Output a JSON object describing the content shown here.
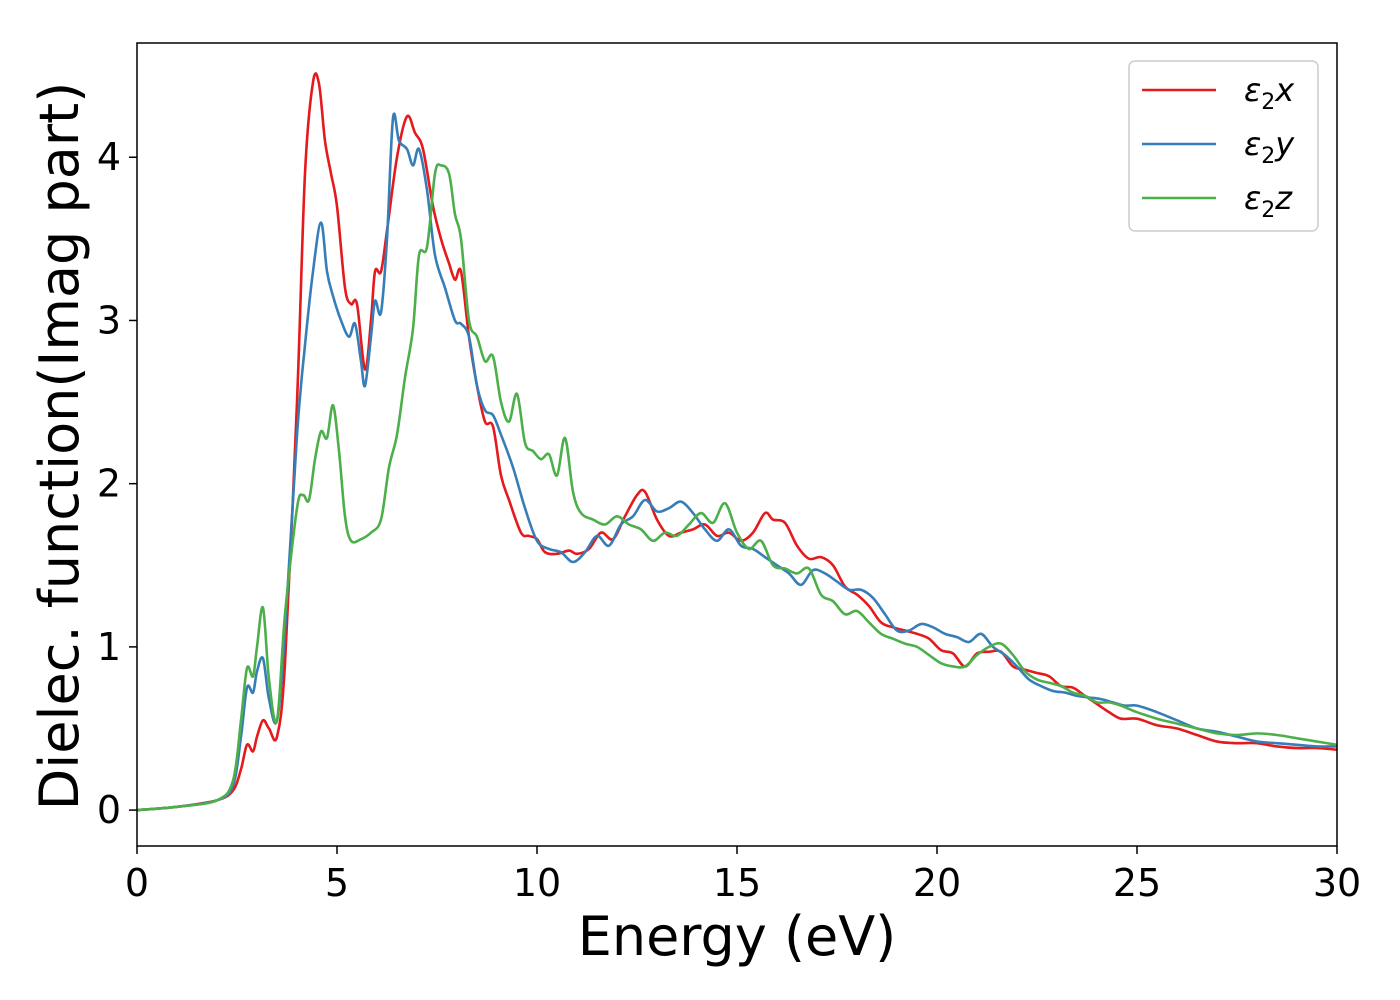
{
  "chart_data": {
    "type": "line",
    "title": "",
    "xlabel": "Energy (eV)",
    "ylabel": "Dielec. function(Imag part)",
    "xlim": [
      0,
      30
    ],
    "ylim": [
      -0.22,
      4.7
    ],
    "xticks": [
      0,
      5,
      10,
      15,
      20,
      25,
      30
    ],
    "yticks": [
      0,
      1,
      2,
      3,
      4
    ],
    "grid": false,
    "legend_position": "top-right",
    "series": [
      {
        "name": "ε₂x",
        "legend_main": "ε",
        "legend_sub": "2",
        "legend_tail": "x",
        "color": "#e41a1c",
        "points": [
          [
            0,
            0
          ],
          [
            1,
            0.02
          ],
          [
            2,
            0.06
          ],
          [
            2.4,
            0.12
          ],
          [
            2.6,
            0.25
          ],
          [
            2.75,
            0.4
          ],
          [
            2.9,
            0.36
          ],
          [
            3.0,
            0.45
          ],
          [
            3.15,
            0.55
          ],
          [
            3.3,
            0.5
          ],
          [
            3.5,
            0.45
          ],
          [
            3.7,
            0.9
          ],
          [
            4.0,
            2.5
          ],
          [
            4.2,
            3.9
          ],
          [
            4.4,
            4.46
          ],
          [
            4.55,
            4.45
          ],
          [
            4.7,
            4.1
          ],
          [
            4.85,
            3.9
          ],
          [
            5.0,
            3.7
          ],
          [
            5.2,
            3.2
          ],
          [
            5.35,
            3.1
          ],
          [
            5.5,
            3.1
          ],
          [
            5.7,
            2.7
          ],
          [
            5.85,
            3.0
          ],
          [
            5.95,
            3.3
          ],
          [
            6.1,
            3.3
          ],
          [
            6.25,
            3.55
          ],
          [
            6.5,
            4.0
          ],
          [
            6.75,
            4.25
          ],
          [
            6.95,
            4.15
          ],
          [
            7.15,
            4.05
          ],
          [
            7.4,
            3.7
          ],
          [
            7.6,
            3.5
          ],
          [
            7.8,
            3.35
          ],
          [
            7.95,
            3.25
          ],
          [
            8.1,
            3.3
          ],
          [
            8.3,
            2.9
          ],
          [
            8.5,
            2.6
          ],
          [
            8.7,
            2.38
          ],
          [
            8.9,
            2.35
          ],
          [
            9.1,
            2.05
          ],
          [
            9.3,
            1.9
          ],
          [
            9.6,
            1.7
          ],
          [
            9.8,
            1.68
          ],
          [
            10.0,
            1.66
          ],
          [
            10.2,
            1.58
          ],
          [
            10.5,
            1.57
          ],
          [
            10.8,
            1.59
          ],
          [
            11.0,
            1.57
          ],
          [
            11.3,
            1.6
          ],
          [
            11.6,
            1.7
          ],
          [
            11.9,
            1.66
          ],
          [
            12.2,
            1.8
          ],
          [
            12.5,
            1.93
          ],
          [
            12.7,
            1.95
          ],
          [
            13.0,
            1.78
          ],
          [
            13.3,
            1.68
          ],
          [
            13.6,
            1.7
          ],
          [
            13.9,
            1.72
          ],
          [
            14.2,
            1.75
          ],
          [
            14.5,
            1.68
          ],
          [
            14.8,
            1.7
          ],
          [
            15.1,
            1.65
          ],
          [
            15.4,
            1.7
          ],
          [
            15.7,
            1.82
          ],
          [
            15.9,
            1.78
          ],
          [
            16.2,
            1.76
          ],
          [
            16.5,
            1.62
          ],
          [
            16.8,
            1.54
          ],
          [
            17.1,
            1.55
          ],
          [
            17.4,
            1.5
          ],
          [
            17.7,
            1.37
          ],
          [
            18.0,
            1.32
          ],
          [
            18.3,
            1.25
          ],
          [
            18.6,
            1.15
          ],
          [
            18.9,
            1.12
          ],
          [
            19.2,
            1.1
          ],
          [
            19.5,
            1.08
          ],
          [
            19.8,
            1.05
          ],
          [
            20.1,
            0.98
          ],
          [
            20.4,
            0.96
          ],
          [
            20.7,
            0.88
          ],
          [
            21.0,
            0.96
          ],
          [
            21.3,
            0.97
          ],
          [
            21.6,
            0.97
          ],
          [
            21.9,
            0.88
          ],
          [
            22.2,
            0.86
          ],
          [
            22.5,
            0.84
          ],
          [
            22.8,
            0.82
          ],
          [
            23.1,
            0.76
          ],
          [
            23.4,
            0.75
          ],
          [
            23.7,
            0.7
          ],
          [
            24.0,
            0.65
          ],
          [
            24.3,
            0.6
          ],
          [
            24.6,
            0.56
          ],
          [
            25.0,
            0.56
          ],
          [
            25.5,
            0.52
          ],
          [
            26.0,
            0.5
          ],
          [
            26.5,
            0.46
          ],
          [
            27.0,
            0.42
          ],
          [
            27.5,
            0.41
          ],
          [
            28.0,
            0.41
          ],
          [
            28.5,
            0.39
          ],
          [
            29.0,
            0.38
          ],
          [
            29.5,
            0.38
          ],
          [
            30,
            0.37
          ]
        ]
      },
      {
        "name": "ε₂y",
        "legend_main": "ε",
        "legend_sub": "2",
        "legend_tail": "y",
        "color": "#377eb8",
        "points": [
          [
            0,
            0
          ],
          [
            1,
            0.02
          ],
          [
            2,
            0.06
          ],
          [
            2.4,
            0.15
          ],
          [
            2.6,
            0.45
          ],
          [
            2.75,
            0.75
          ],
          [
            2.9,
            0.72
          ],
          [
            3.0,
            0.85
          ],
          [
            3.15,
            0.93
          ],
          [
            3.3,
            0.68
          ],
          [
            3.5,
            0.55
          ],
          [
            3.7,
            1.1
          ],
          [
            4.0,
            2.3
          ],
          [
            4.2,
            2.85
          ],
          [
            4.4,
            3.3
          ],
          [
            4.6,
            3.6
          ],
          [
            4.75,
            3.3
          ],
          [
            4.9,
            3.15
          ],
          [
            5.1,
            3.0
          ],
          [
            5.3,
            2.9
          ],
          [
            5.45,
            2.98
          ],
          [
            5.6,
            2.75
          ],
          [
            5.7,
            2.6
          ],
          [
            5.85,
            2.9
          ],
          [
            5.95,
            3.12
          ],
          [
            6.1,
            3.05
          ],
          [
            6.25,
            3.5
          ],
          [
            6.4,
            4.24
          ],
          [
            6.55,
            4.1
          ],
          [
            6.75,
            4.05
          ],
          [
            6.9,
            3.95
          ],
          [
            7.05,
            4.05
          ],
          [
            7.25,
            3.8
          ],
          [
            7.45,
            3.4
          ],
          [
            7.7,
            3.2
          ],
          [
            7.95,
            3.0
          ],
          [
            8.1,
            2.98
          ],
          [
            8.3,
            2.9
          ],
          [
            8.5,
            2.6
          ],
          [
            8.7,
            2.45
          ],
          [
            8.9,
            2.42
          ],
          [
            9.1,
            2.3
          ],
          [
            9.4,
            2.1
          ],
          [
            9.7,
            1.85
          ],
          [
            10.0,
            1.65
          ],
          [
            10.3,
            1.6
          ],
          [
            10.6,
            1.58
          ],
          [
            10.9,
            1.52
          ],
          [
            11.2,
            1.58
          ],
          [
            11.5,
            1.68
          ],
          [
            11.8,
            1.62
          ],
          [
            12.1,
            1.75
          ],
          [
            12.4,
            1.8
          ],
          [
            12.7,
            1.9
          ],
          [
            13.0,
            1.83
          ],
          [
            13.3,
            1.85
          ],
          [
            13.6,
            1.89
          ],
          [
            13.9,
            1.82
          ],
          [
            14.2,
            1.72
          ],
          [
            14.5,
            1.65
          ],
          [
            14.8,
            1.72
          ],
          [
            15.1,
            1.62
          ],
          [
            15.4,
            1.6
          ],
          [
            15.7,
            1.55
          ],
          [
            16.0,
            1.5
          ],
          [
            16.3,
            1.45
          ],
          [
            16.6,
            1.38
          ],
          [
            16.9,
            1.47
          ],
          [
            17.2,
            1.45
          ],
          [
            17.5,
            1.4
          ],
          [
            17.8,
            1.35
          ],
          [
            18.1,
            1.35
          ],
          [
            18.4,
            1.3
          ],
          [
            18.7,
            1.2
          ],
          [
            19.0,
            1.1
          ],
          [
            19.3,
            1.1
          ],
          [
            19.6,
            1.14
          ],
          [
            19.9,
            1.12
          ],
          [
            20.2,
            1.08
          ],
          [
            20.5,
            1.06
          ],
          [
            20.8,
            1.03
          ],
          [
            21.1,
            1.08
          ],
          [
            21.4,
            1.0
          ],
          [
            21.7,
            0.95
          ],
          [
            22.0,
            0.88
          ],
          [
            22.3,
            0.8
          ],
          [
            22.6,
            0.76
          ],
          [
            22.9,
            0.73
          ],
          [
            23.2,
            0.72
          ],
          [
            23.5,
            0.7
          ],
          [
            23.8,
            0.69
          ],
          [
            24.1,
            0.68
          ],
          [
            24.4,
            0.66
          ],
          [
            24.7,
            0.64
          ],
          [
            25.0,
            0.64
          ],
          [
            25.5,
            0.6
          ],
          [
            26.0,
            0.55
          ],
          [
            26.5,
            0.5
          ],
          [
            27.0,
            0.48
          ],
          [
            27.5,
            0.45
          ],
          [
            28.0,
            0.42
          ],
          [
            28.5,
            0.41
          ],
          [
            29.0,
            0.4
          ],
          [
            29.5,
            0.39
          ],
          [
            30,
            0.39
          ]
        ]
      },
      {
        "name": "ε₂z",
        "legend_main": "ε",
        "legend_sub": "2",
        "legend_tail": "z",
        "color": "#4daf4a",
        "points": [
          [
            0,
            0
          ],
          [
            1,
            0.02
          ],
          [
            2,
            0.06
          ],
          [
            2.4,
            0.18
          ],
          [
            2.6,
            0.55
          ],
          [
            2.75,
            0.87
          ],
          [
            2.9,
            0.82
          ],
          [
            3.0,
            1.0
          ],
          [
            3.15,
            1.24
          ],
          [
            3.3,
            0.8
          ],
          [
            3.5,
            0.55
          ],
          [
            3.7,
            1.2
          ],
          [
            4.0,
            1.85
          ],
          [
            4.15,
            1.93
          ],
          [
            4.3,
            1.9
          ],
          [
            4.45,
            2.15
          ],
          [
            4.6,
            2.32
          ],
          [
            4.75,
            2.28
          ],
          [
            4.9,
            2.48
          ],
          [
            5.05,
            2.2
          ],
          [
            5.2,
            1.8
          ],
          [
            5.35,
            1.65
          ],
          [
            5.6,
            1.66
          ],
          [
            5.85,
            1.7
          ],
          [
            6.1,
            1.78
          ],
          [
            6.3,
            2.1
          ],
          [
            6.5,
            2.3
          ],
          [
            6.7,
            2.65
          ],
          [
            6.9,
            2.95
          ],
          [
            7.05,
            3.4
          ],
          [
            7.25,
            3.45
          ],
          [
            7.45,
            3.9
          ],
          [
            7.6,
            3.95
          ],
          [
            7.8,
            3.9
          ],
          [
            7.95,
            3.65
          ],
          [
            8.1,
            3.5
          ],
          [
            8.3,
            3.0
          ],
          [
            8.5,
            2.9
          ],
          [
            8.7,
            2.75
          ],
          [
            8.9,
            2.78
          ],
          [
            9.1,
            2.5
          ],
          [
            9.3,
            2.38
          ],
          [
            9.5,
            2.55
          ],
          [
            9.7,
            2.25
          ],
          [
            9.9,
            2.2
          ],
          [
            10.1,
            2.15
          ],
          [
            10.3,
            2.18
          ],
          [
            10.5,
            2.05
          ],
          [
            10.7,
            2.28
          ],
          [
            10.9,
            1.95
          ],
          [
            11.1,
            1.82
          ],
          [
            11.4,
            1.78
          ],
          [
            11.7,
            1.75
          ],
          [
            12.0,
            1.8
          ],
          [
            12.3,
            1.75
          ],
          [
            12.6,
            1.72
          ],
          [
            12.9,
            1.65
          ],
          [
            13.2,
            1.7
          ],
          [
            13.5,
            1.68
          ],
          [
            13.8,
            1.75
          ],
          [
            14.1,
            1.82
          ],
          [
            14.4,
            1.76
          ],
          [
            14.7,
            1.88
          ],
          [
            15.0,
            1.7
          ],
          [
            15.3,
            1.6
          ],
          [
            15.6,
            1.65
          ],
          [
            15.9,
            1.5
          ],
          [
            16.2,
            1.48
          ],
          [
            16.5,
            1.45
          ],
          [
            16.8,
            1.48
          ],
          [
            17.1,
            1.32
          ],
          [
            17.4,
            1.28
          ],
          [
            17.7,
            1.2
          ],
          [
            18.0,
            1.22
          ],
          [
            18.3,
            1.15
          ],
          [
            18.6,
            1.08
          ],
          [
            18.9,
            1.05
          ],
          [
            19.2,
            1.02
          ],
          [
            19.5,
            1.0
          ],
          [
            19.8,
            0.95
          ],
          [
            20.1,
            0.9
          ],
          [
            20.4,
            0.88
          ],
          [
            20.7,
            0.88
          ],
          [
            21.0,
            0.95
          ],
          [
            21.3,
            1.0
          ],
          [
            21.6,
            1.02
          ],
          [
            21.9,
            0.95
          ],
          [
            22.2,
            0.85
          ],
          [
            22.5,
            0.8
          ],
          [
            22.8,
            0.78
          ],
          [
            23.1,
            0.76
          ],
          [
            23.4,
            0.72
          ],
          [
            23.7,
            0.7
          ],
          [
            24.0,
            0.66
          ],
          [
            24.3,
            0.66
          ],
          [
            24.6,
            0.64
          ],
          [
            25.0,
            0.6
          ],
          [
            25.5,
            0.56
          ],
          [
            26.0,
            0.53
          ],
          [
            26.5,
            0.5
          ],
          [
            27.0,
            0.47
          ],
          [
            27.5,
            0.46
          ],
          [
            28.0,
            0.47
          ],
          [
            28.5,
            0.46
          ],
          [
            29.0,
            0.44
          ],
          [
            29.5,
            0.42
          ],
          [
            30,
            0.4
          ]
        ]
      }
    ]
  }
}
